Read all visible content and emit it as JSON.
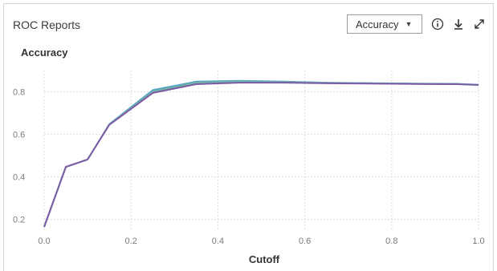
{
  "header": {
    "title": "ROC Reports",
    "dropdown": {
      "selected": "Accuracy",
      "caret": "▼"
    },
    "icons": [
      "info-icon",
      "download-icon",
      "expand-icon"
    ]
  },
  "chart_data": {
    "type": "line",
    "title": "Accuracy",
    "xlabel": "Cutoff",
    "ylabel": "",
    "xlim": [
      0,
      1
    ],
    "ylim": [
      0.15,
      0.9
    ],
    "xticks": [
      "0.0",
      "0.2",
      "0.4",
      "0.6",
      "0.8",
      "1.0"
    ],
    "yticks": [
      "0.2",
      "0.4",
      "0.6",
      "0.8"
    ],
    "grid": true,
    "legend": "none",
    "series": [
      {
        "color": "#4f9fc7",
        "x": [
          0.0,
          0.05,
          0.1,
          0.15,
          0.25,
          0.35,
          0.45,
          0.55,
          0.65,
          0.75,
          0.85,
          0.95,
          1.0
        ],
        "y": [
          0.165,
          0.447,
          0.482,
          0.648,
          0.808,
          0.848,
          0.852,
          0.848,
          0.843,
          0.841,
          0.839,
          0.838,
          0.833
        ]
      },
      {
        "color": "#6fb4a4",
        "x": [
          0.0,
          0.05,
          0.1,
          0.15,
          0.25,
          0.35,
          0.45,
          0.55,
          0.65,
          0.75,
          0.85,
          0.95,
          1.0
        ],
        "y": [
          0.165,
          0.447,
          0.482,
          0.647,
          0.802,
          0.843,
          0.849,
          0.846,
          0.842,
          0.84,
          0.838,
          0.837,
          0.833
        ]
      },
      {
        "color": "#7d5aa6",
        "x": [
          0.0,
          0.05,
          0.1,
          0.15,
          0.25,
          0.35,
          0.45,
          0.55,
          0.65,
          0.75,
          0.85,
          0.95,
          1.0
        ],
        "y": [
          0.165,
          0.447,
          0.482,
          0.645,
          0.795,
          0.836,
          0.843,
          0.843,
          0.84,
          0.839,
          0.837,
          0.836,
          0.832
        ]
      }
    ]
  }
}
